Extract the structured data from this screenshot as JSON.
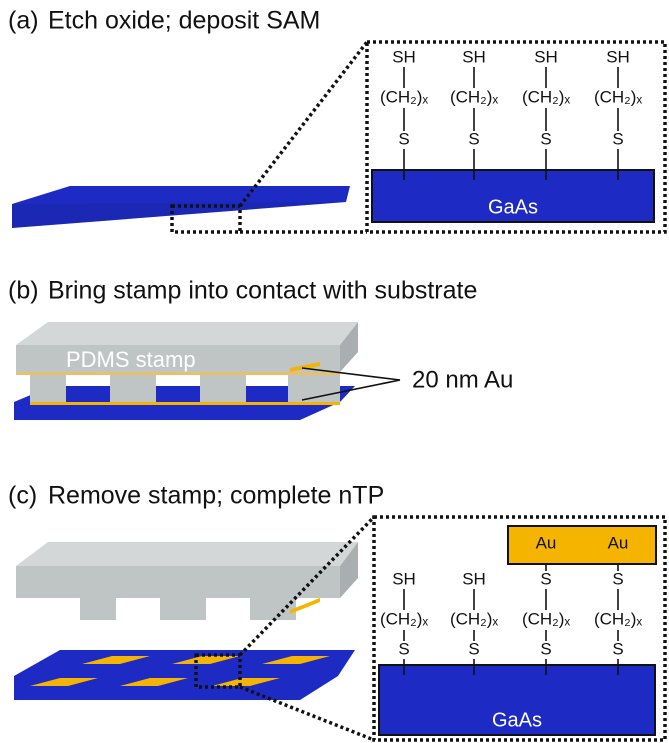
{
  "panels": [
    {
      "label": "(a)",
      "title": "Etch oxide; deposit SAM",
      "inset": {
        "substrate": "GaAs",
        "molecules": [
          {
            "head": "SH",
            "chain": "(CH₂)ₓ",
            "anchor": "S"
          },
          {
            "head": "SH",
            "chain": "(CH₂)ₓ",
            "anchor": "S"
          },
          {
            "head": "SH",
            "chain": "(CH₂)ₓ",
            "anchor": "S"
          },
          {
            "head": "SH",
            "chain": "(CH₂)ₓ",
            "anchor": "S"
          }
        ]
      }
    },
    {
      "label": "(b)",
      "title": "Bring stamp into contact with substrate",
      "stamp": "PDMS stamp",
      "callout": "20 nm Au"
    },
    {
      "label": "(c)",
      "title": "Remove stamp; complete nTP",
      "inset": {
        "substrate": "GaAs",
        "molecules": [
          {
            "head": "SH",
            "chain": "(CH₂)ₓ",
            "anchor": "S"
          },
          {
            "head": "SH",
            "chain": "(CH₂)ₓ",
            "anchor": "S"
          },
          {
            "cap": "Au",
            "head": "S",
            "chain": "(CH₂)ₓ",
            "anchor": "S"
          },
          {
            "cap": "Au",
            "head": "S",
            "chain": "(CH₂)ₓ",
            "anchor": "S"
          }
        ]
      }
    }
  ]
}
